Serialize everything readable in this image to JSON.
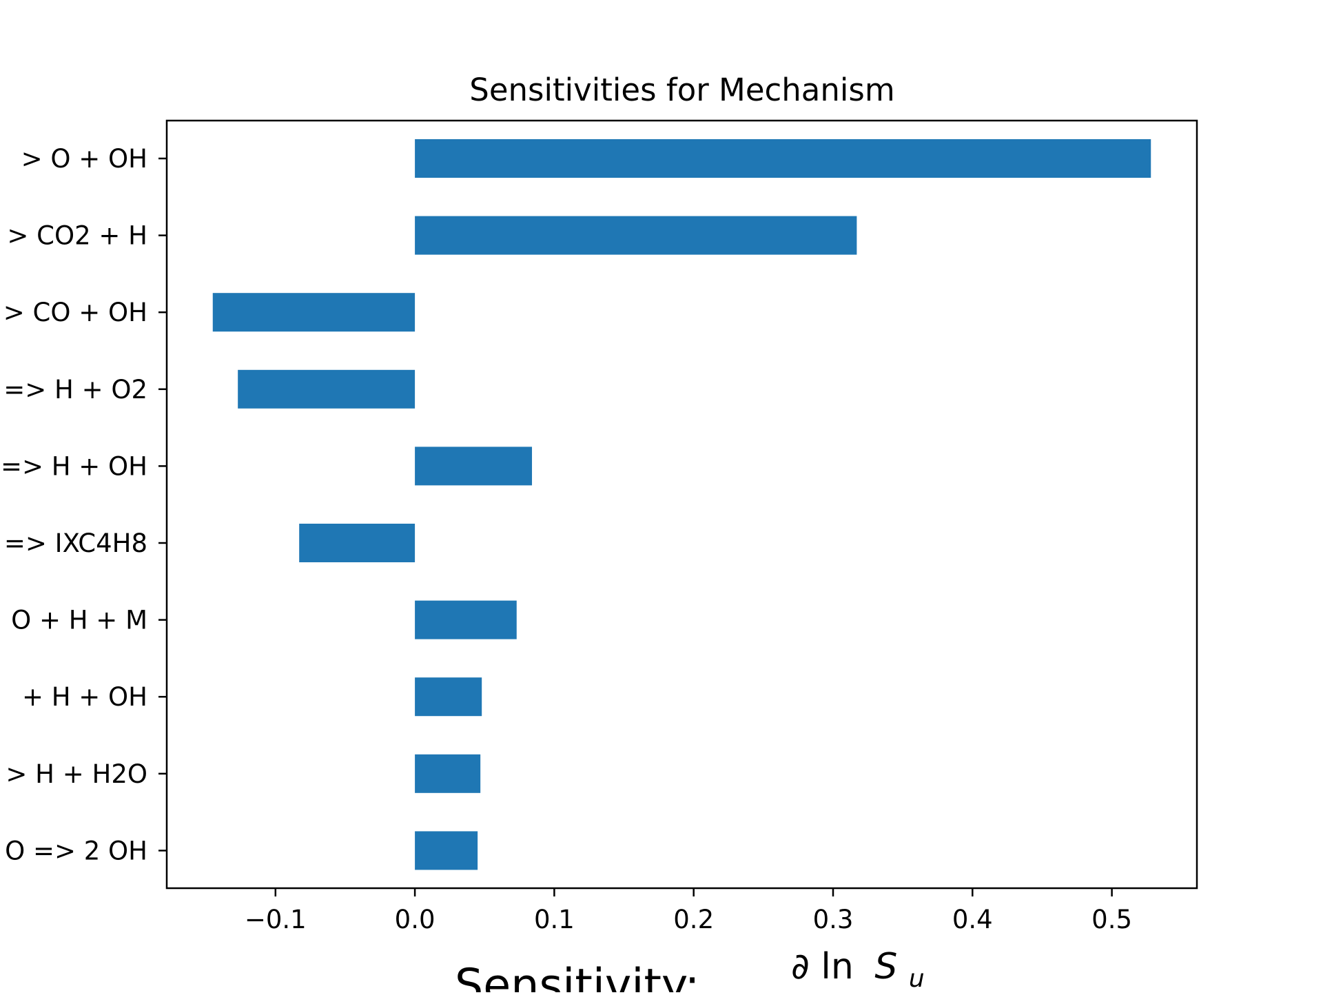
{
  "chart_data": {
    "type": "bar",
    "orientation": "horizontal",
    "title": "Sensitivities for Mechanism",
    "xlabel": {
      "text": "Sensitivity:",
      "numerator": "∂ ln",
      "symbol": "S",
      "subscript": "u"
    },
    "categories": [
      "> O + OH",
      "> CO2 + H",
      "> CO + OH",
      "=> H + O2",
      "=> H + OH",
      "=> IXC4H8",
      "O + H + M",
      "+ H + OH",
      "> H + H2O",
      "O => 2 OH"
    ],
    "values": [
      0.528,
      0.317,
      -0.145,
      -0.127,
      0.084,
      -0.083,
      0.073,
      0.048,
      0.047,
      0.045
    ],
    "xlim": [
      -0.178,
      0.561
    ],
    "x_ticks": [
      {
        "value": -0.1,
        "label": "−0.1"
      },
      {
        "value": 0.0,
        "label": "0.0"
      },
      {
        "value": 0.1,
        "label": "0.1"
      },
      {
        "value": 0.2,
        "label": "0.2"
      },
      {
        "value": 0.3,
        "label": "0.3"
      },
      {
        "value": 0.4,
        "label": "0.4"
      },
      {
        "value": 0.5,
        "label": "0.5"
      }
    ],
    "bar_color": "#1f77b4",
    "grid": false,
    "legend": "none"
  }
}
